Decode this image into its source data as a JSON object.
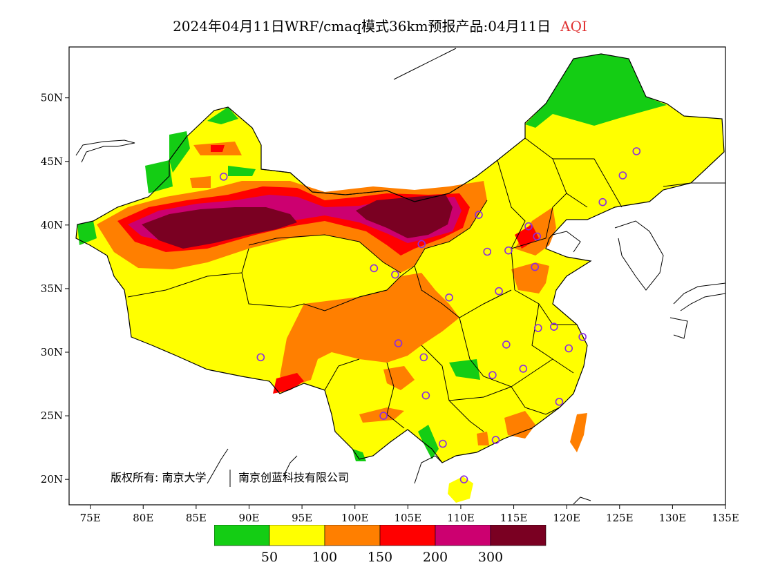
{
  "title": {
    "main": "2024年04月11日WRF/cmaq模式36km预报产品:04月11日",
    "variable": "AQI"
  },
  "map": {
    "lon_range": [
      73,
      135
    ],
    "lat_range": [
      18,
      54
    ],
    "x_ticks": [
      "75E",
      "80E",
      "85E",
      "90E",
      "95E",
      "100E",
      "105E",
      "110E",
      "115E",
      "120E",
      "125E",
      "130E",
      "135E"
    ],
    "x_tick_values": [
      75,
      80,
      85,
      90,
      95,
      100,
      105,
      110,
      115,
      120,
      125,
      130,
      135
    ],
    "y_ticks": [
      "50N",
      "45N",
      "40N",
      "35N",
      "30N",
      "25N",
      "20N"
    ],
    "y_tick_values": [
      50,
      45,
      40,
      35,
      30,
      25,
      20
    ],
    "copyright": "版权所有: 南京大学",
    "copyright2": "南京创蓝科技有限公司",
    "station_color": "#8a2be2",
    "stations": [
      [
        87.6,
        43.8
      ],
      [
        101.8,
        36.6
      ],
      [
        103.8,
        36.1
      ],
      [
        106.3,
        38.5
      ],
      [
        111.7,
        40.8
      ],
      [
        112.5,
        37.9
      ],
      [
        114.5,
        38.0
      ],
      [
        116.4,
        39.9
      ],
      [
        117.2,
        39.1
      ],
      [
        117.0,
        36.7
      ],
      [
        113.6,
        34.8
      ],
      [
        108.9,
        34.3
      ],
      [
        106.5,
        29.6
      ],
      [
        104.1,
        30.7
      ],
      [
        91.1,
        29.6
      ],
      [
        106.7,
        26.6
      ],
      [
        102.7,
        25.0
      ],
      [
        108.3,
        22.8
      ],
      [
        110.3,
        20.0
      ],
      [
        113.3,
        23.1
      ],
      [
        119.3,
        26.1
      ],
      [
        115.9,
        28.7
      ],
      [
        113.0,
        28.2
      ],
      [
        114.3,
        30.6
      ],
      [
        117.3,
        31.9
      ],
      [
        118.8,
        32.0
      ],
      [
        120.2,
        30.3
      ],
      [
        121.5,
        31.2
      ],
      [
        123.4,
        41.8
      ],
      [
        125.3,
        43.9
      ],
      [
        126.6,
        45.8
      ]
    ]
  },
  "legend": {
    "labels": [
      "50",
      "100",
      "150",
      "200",
      "300"
    ],
    "colors": [
      "#14cd14",
      "#ffff00",
      "#ff7f00",
      "#ff0000",
      "#cc0070",
      "#7a0022"
    ],
    "categories": [
      "0-50",
      "50-100",
      "100-150",
      "150-200",
      "200-300",
      ">300"
    ]
  }
}
